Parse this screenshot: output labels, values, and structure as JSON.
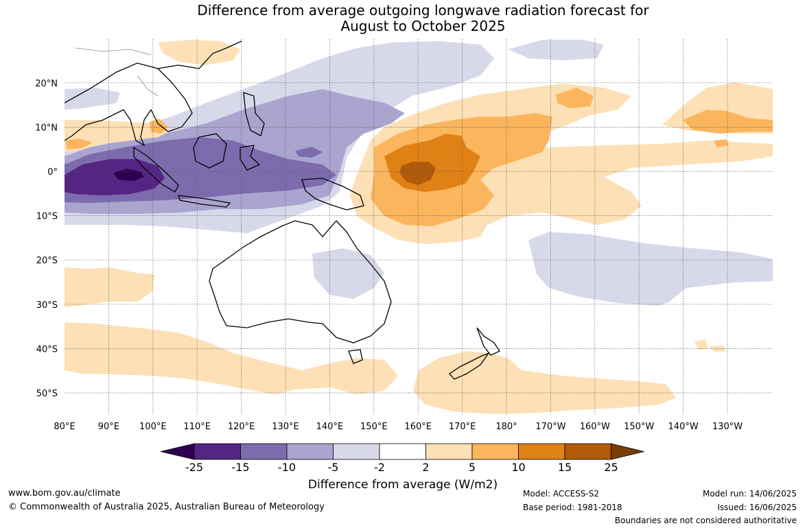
{
  "title": {
    "line1": "Difference from average outgoing longwave radiation forecast for",
    "line2": "August to October 2025"
  },
  "map": {
    "lon_labels": [
      "80°E",
      "90°E",
      "100°E",
      "110°E",
      "120°E",
      "130°E",
      "140°E",
      "150°E",
      "160°E",
      "170°E",
      "180°",
      "170°W",
      "160°W",
      "150°W",
      "140°W",
      "130°W"
    ],
    "lat_labels": [
      "20°N",
      "10°N",
      "0°",
      "10°S",
      "20°S",
      "30°S",
      "40°S",
      "50°S"
    ],
    "colors": {
      "purple_darkest": "#2d0050",
      "purple_dark": "#552584",
      "purple_mid": "#7c6cad",
      "purple_light": "#a9a5cf",
      "purple_pale": "#d8d8eb",
      "orange_pale": "#fde0b5",
      "orange_light": "#fbb55d",
      "orange_mid": "#e08116",
      "orange_dark": "#b05a0a",
      "orange_darkest": "#7a3d08"
    }
  },
  "colorbar": {
    "tick_labels": [
      "-25",
      "-15",
      "-10",
      "-5",
      "-2",
      "2",
      "5",
      "10",
      "15",
      "25"
    ],
    "title": "Difference from average (W/m2)"
  },
  "footer": {
    "website": "www.bom.gov.au/climate",
    "copyright": "© Commonwealth of Australia 2025, Australian Bureau of Meteorology",
    "model": "Model: ACCESS-S2",
    "base_period": "Base period: 1981-2018",
    "model_run": "Model run: 14/06/2025",
    "issued": "Issued: 16/06/2025",
    "disclaimer": "Boundaries are not considered authoritative"
  }
}
